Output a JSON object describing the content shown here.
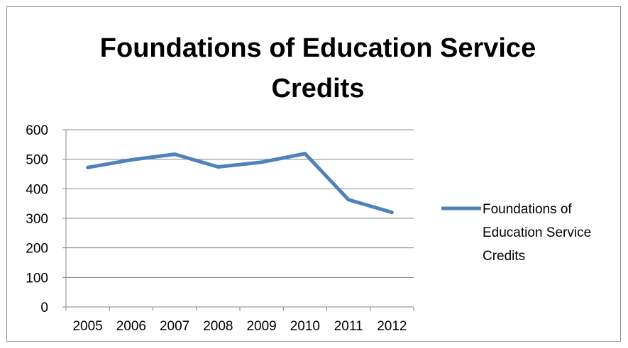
{
  "chart_data": {
    "type": "line",
    "title_lines": [
      "Foundations of Education Service",
      "Credits"
    ],
    "categories": [
      "2005",
      "2006",
      "2007",
      "2008",
      "2009",
      "2010",
      "2011",
      "2012"
    ],
    "series": [
      {
        "name": "Foundations of Education Service Credits",
        "legend_lines": [
          "Foundations of",
          "Education Service",
          "Credits"
        ],
        "values": [
          472,
          498,
          517,
          474,
          490,
          519,
          363,
          320
        ],
        "color": "#4f81bd"
      }
    ],
    "ylim": [
      0,
      600
    ],
    "y_ticks": [
      "0",
      "100",
      "200",
      "300",
      "400",
      "500",
      "600"
    ],
    "grid": true,
    "legend_position": "right"
  }
}
